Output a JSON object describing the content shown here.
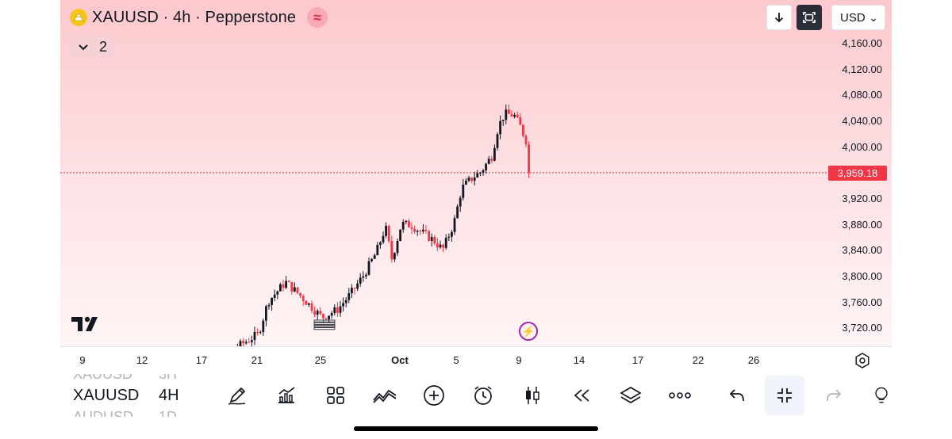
{
  "header": {
    "title": "XAUUSD · 4h · Pepperstone",
    "wave_badge": "≈",
    "indicators_collapsed_count": "2"
  },
  "top_controls": {
    "currency": "USD",
    "currency_caret": "⌄"
  },
  "price_axis": {
    "labels": [
      "4,160.00",
      "4,120.00",
      "4,080.00",
      "4,040.00",
      "4,000.00",
      "3,920.00",
      "3,880.00",
      "3,840.00",
      "3,800.00",
      "3,760.00",
      "3,720.00"
    ],
    "last_price": "3,959.18",
    "last_price_color": "#f23645"
  },
  "time_axis": {
    "labels": [
      "9",
      "12",
      "17",
      "21",
      "25",
      "Oct",
      "5",
      "9",
      "14",
      "17",
      "22",
      "26"
    ]
  },
  "symbol_bar": {
    "prev_symbol": "XAUUSD",
    "prev_res": "3H",
    "symbol": "XAUUSD",
    "resolution": "4H",
    "next_symbol": "AUDUSD",
    "next_res": "1D"
  },
  "toolbar": {
    "icons": [
      "draw-icon",
      "chart-type-icon",
      "widgets-icon",
      "indicators-icon",
      "add-icon",
      "alert-icon",
      "candles-icon",
      "replay-icon",
      "layers-icon",
      "more-icon",
      "undo-icon",
      "exit-fullscreen-icon",
      "redo-icon",
      "ideas-icon"
    ]
  },
  "colors": {
    "up": "#131722",
    "down": "#f23645",
    "accent": "#9c27b0"
  }
}
